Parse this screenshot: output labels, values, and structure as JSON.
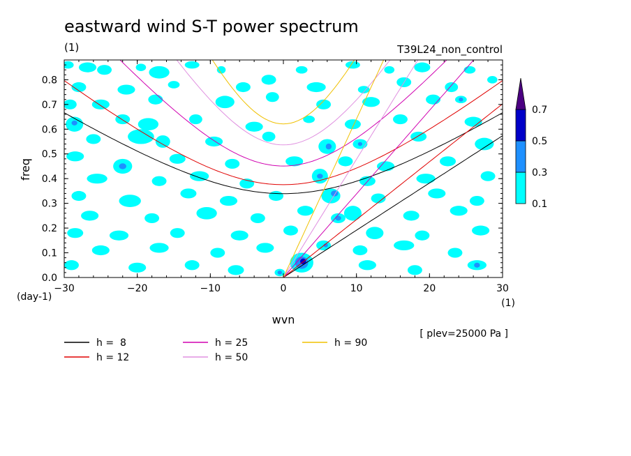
{
  "title": "eastward wind S-T power spectrum",
  "unit_top_left": "(1)",
  "experiment": "T39L24_non_control",
  "plev_note": "[ plev=25000 Pa ]",
  "chart_data": {
    "type": "contour",
    "title": "eastward wind S-T power spectrum",
    "xlabel": "wvn",
    "xunit": "(1)",
    "ylabel": "freq",
    "yunit": "(day-1)",
    "xlim": [
      -30,
      30
    ],
    "ylim": [
      0,
      0.88
    ],
    "xticks": [
      "-30",
      "-20",
      "-10",
      "0",
      "10",
      "20",
      "30"
    ],
    "yticks": [
      "0.0",
      "0.1",
      "0.2",
      "0.3",
      "0.4",
      "0.5",
      "0.6",
      "0.7",
      "0.8"
    ],
    "colorbar": {
      "levels": [
        "0.1",
        "0.3",
        "0.5",
        "0.7"
      ],
      "colors": [
        "#00ffff",
        "#1e90ff",
        "#0000c8",
        "#4b0082"
      ]
    },
    "dispersion_curves": [
      {
        "label": "h =  8",
        "h": 8,
        "color": "#000000"
      },
      {
        "label": "h = 12",
        "h": 12,
        "color": "#e00000"
      },
      {
        "label": "h = 25",
        "h": 25,
        "color": "#d000b0"
      },
      {
        "label": "h = 50",
        "h": 50,
        "color": "#e090e0"
      },
      {
        "label": "h = 90",
        "h": 90,
        "color": "#f0c000"
      }
    ],
    "patches": [
      {
        "x": -29.5,
        "y": 0.86,
        "rx": 0.8,
        "ry": 0.015,
        "level": 1
      },
      {
        "x": -26.8,
        "y": 0.85,
        "rx": 1.2,
        "ry": 0.02,
        "level": 1
      },
      {
        "x": -24.5,
        "y": 0.84,
        "rx": 1.0,
        "ry": 0.02,
        "level": 1
      },
      {
        "x": -19.5,
        "y": 0.85,
        "rx": 0.7,
        "ry": 0.015,
        "level": 1
      },
      {
        "x": -17.0,
        "y": 0.83,
        "rx": 1.4,
        "ry": 0.025,
        "level": 1
      },
      {
        "x": -12.5,
        "y": 0.86,
        "rx": 1.0,
        "ry": 0.015,
        "level": 1
      },
      {
        "x": -8.5,
        "y": 0.84,
        "rx": 0.6,
        "ry": 0.015,
        "level": 1
      },
      {
        "x": -2.0,
        "y": 0.8,
        "rx": 1.0,
        "ry": 0.02,
        "level": 1
      },
      {
        "x": 2.5,
        "y": 0.84,
        "rx": 0.8,
        "ry": 0.015,
        "level": 1
      },
      {
        "x": 9.5,
        "y": 0.86,
        "rx": 1.0,
        "ry": 0.015,
        "level": 1
      },
      {
        "x": 14.5,
        "y": 0.84,
        "rx": 0.7,
        "ry": 0.015,
        "level": 1
      },
      {
        "x": 19.0,
        "y": 0.85,
        "rx": 1.1,
        "ry": 0.02,
        "level": 1
      },
      {
        "x": 25.5,
        "y": 0.84,
        "rx": 0.8,
        "ry": 0.015,
        "level": 1
      },
      {
        "x": 28.6,
        "y": 0.8,
        "rx": 0.7,
        "ry": 0.015,
        "level": 1
      },
      {
        "x": -28.0,
        "y": 0.77,
        "rx": 1.0,
        "ry": 0.02,
        "level": 1
      },
      {
        "x": -21.5,
        "y": 0.76,
        "rx": 1.2,
        "ry": 0.02,
        "level": 1
      },
      {
        "x": -15.0,
        "y": 0.78,
        "rx": 0.8,
        "ry": 0.015,
        "level": 1
      },
      {
        "x": -5.5,
        "y": 0.77,
        "rx": 1.0,
        "ry": 0.02,
        "level": 1
      },
      {
        "x": 4.5,
        "y": 0.77,
        "rx": 1.3,
        "ry": 0.02,
        "level": 1
      },
      {
        "x": 11.0,
        "y": 0.76,
        "rx": 0.8,
        "ry": 0.015,
        "level": 1
      },
      {
        "x": 16.5,
        "y": 0.79,
        "rx": 1.0,
        "ry": 0.02,
        "level": 1
      },
      {
        "x": 23.0,
        "y": 0.77,
        "rx": 0.9,
        "ry": 0.02,
        "level": 1
      },
      {
        "x": -29.2,
        "y": 0.7,
        "rx": 0.9,
        "ry": 0.02,
        "level": 1
      },
      {
        "x": -25.0,
        "y": 0.7,
        "rx": 1.2,
        "ry": 0.02,
        "level": 1
      },
      {
        "x": -17.5,
        "y": 0.72,
        "rx": 1.0,
        "ry": 0.02,
        "level": 1
      },
      {
        "x": -8.0,
        "y": 0.71,
        "rx": 1.3,
        "ry": 0.025,
        "level": 1
      },
      {
        "x": -1.5,
        "y": 0.73,
        "rx": 0.9,
        "ry": 0.02,
        "level": 1
      },
      {
        "x": 5.5,
        "y": 0.7,
        "rx": 1.0,
        "ry": 0.02,
        "level": 1
      },
      {
        "x": 12.0,
        "y": 0.71,
        "rx": 1.2,
        "ry": 0.02,
        "level": 1
      },
      {
        "x": 20.5,
        "y": 0.72,
        "rx": 1.0,
        "ry": 0.02,
        "level": 1
      },
      {
        "x": 24.3,
        "y": 0.72,
        "rx": 0.8,
        "ry": 0.015,
        "level": 1
      },
      {
        "x": 24.3,
        "y": 0.72,
        "rx": 0.3,
        "ry": 0.008,
        "level": 2
      },
      {
        "x": -28.6,
        "y": 0.62,
        "rx": 1.2,
        "ry": 0.03,
        "level": 1
      },
      {
        "x": -28.6,
        "y": 0.625,
        "rx": 0.4,
        "ry": 0.01,
        "level": 2
      },
      {
        "x": -22.0,
        "y": 0.64,
        "rx": 1.0,
        "ry": 0.02,
        "level": 1
      },
      {
        "x": -18.5,
        "y": 0.62,
        "rx": 1.4,
        "ry": 0.025,
        "level": 1
      },
      {
        "x": -12.0,
        "y": 0.64,
        "rx": 0.9,
        "ry": 0.02,
        "level": 1
      },
      {
        "x": -4.0,
        "y": 0.61,
        "rx": 1.2,
        "ry": 0.02,
        "level": 1
      },
      {
        "x": 3.5,
        "y": 0.64,
        "rx": 0.8,
        "ry": 0.015,
        "level": 1
      },
      {
        "x": 9.5,
        "y": 0.62,
        "rx": 1.1,
        "ry": 0.02,
        "level": 1
      },
      {
        "x": 16.0,
        "y": 0.64,
        "rx": 1.0,
        "ry": 0.02,
        "level": 1
      },
      {
        "x": 26.0,
        "y": 0.63,
        "rx": 1.2,
        "ry": 0.02,
        "level": 1
      },
      {
        "x": -26.0,
        "y": 0.56,
        "rx": 1.0,
        "ry": 0.02,
        "level": 1
      },
      {
        "x": -19.5,
        "y": 0.57,
        "rx": 1.8,
        "ry": 0.03,
        "level": 1
      },
      {
        "x": -16.5,
        "y": 0.55,
        "rx": 1.0,
        "ry": 0.025,
        "level": 1
      },
      {
        "x": -9.5,
        "y": 0.55,
        "rx": 1.2,
        "ry": 0.02,
        "level": 1
      },
      {
        "x": -2.0,
        "y": 0.57,
        "rx": 0.9,
        "ry": 0.02,
        "level": 1
      },
      {
        "x": 6.0,
        "y": 0.53,
        "rx": 1.2,
        "ry": 0.03,
        "level": 1
      },
      {
        "x": 6.2,
        "y": 0.53,
        "rx": 0.4,
        "ry": 0.012,
        "level": 2
      },
      {
        "x": 10.5,
        "y": 0.54,
        "rx": 1.0,
        "ry": 0.02,
        "level": 1
      },
      {
        "x": 10.5,
        "y": 0.54,
        "rx": 0.3,
        "ry": 0.008,
        "level": 2
      },
      {
        "x": 18.5,
        "y": 0.57,
        "rx": 1.1,
        "ry": 0.02,
        "level": 1
      },
      {
        "x": 27.5,
        "y": 0.54,
        "rx": 1.3,
        "ry": 0.025,
        "level": 1
      },
      {
        "x": -28.5,
        "y": 0.49,
        "rx": 1.2,
        "ry": 0.02,
        "level": 1
      },
      {
        "x": -22.0,
        "y": 0.45,
        "rx": 1.3,
        "ry": 0.03,
        "level": 1
      },
      {
        "x": -22.0,
        "y": 0.45,
        "rx": 0.5,
        "ry": 0.012,
        "level": 2
      },
      {
        "x": -14.5,
        "y": 0.48,
        "rx": 1.1,
        "ry": 0.02,
        "level": 1
      },
      {
        "x": -7.0,
        "y": 0.46,
        "rx": 1.0,
        "ry": 0.02,
        "level": 1
      },
      {
        "x": 1.5,
        "y": 0.47,
        "rx": 1.2,
        "ry": 0.02,
        "level": 1
      },
      {
        "x": 8.5,
        "y": 0.47,
        "rx": 1.0,
        "ry": 0.02,
        "level": 1
      },
      {
        "x": 14.0,
        "y": 0.45,
        "rx": 1.2,
        "ry": 0.02,
        "level": 1
      },
      {
        "x": 22.5,
        "y": 0.47,
        "rx": 1.1,
        "ry": 0.02,
        "level": 1
      },
      {
        "x": -25.5,
        "y": 0.4,
        "rx": 1.4,
        "ry": 0.02,
        "level": 1
      },
      {
        "x": -17.0,
        "y": 0.39,
        "rx": 1.0,
        "ry": 0.02,
        "level": 1
      },
      {
        "x": -11.5,
        "y": 0.41,
        "rx": 1.3,
        "ry": 0.02,
        "level": 1
      },
      {
        "x": -5.0,
        "y": 0.38,
        "rx": 1.0,
        "ry": 0.02,
        "level": 1
      },
      {
        "x": 5.0,
        "y": 0.41,
        "rx": 1.1,
        "ry": 0.03,
        "level": 1
      },
      {
        "x": 5.0,
        "y": 0.41,
        "rx": 0.4,
        "ry": 0.01,
        "level": 2
      },
      {
        "x": 11.5,
        "y": 0.39,
        "rx": 1.1,
        "ry": 0.02,
        "level": 1
      },
      {
        "x": 19.5,
        "y": 0.4,
        "rx": 1.3,
        "ry": 0.02,
        "level": 1
      },
      {
        "x": 28.0,
        "y": 0.41,
        "rx": 1.0,
        "ry": 0.02,
        "level": 1
      },
      {
        "x": -28.0,
        "y": 0.33,
        "rx": 1.0,
        "ry": 0.02,
        "level": 1
      },
      {
        "x": -21.0,
        "y": 0.31,
        "rx": 1.5,
        "ry": 0.025,
        "level": 1
      },
      {
        "x": -13.0,
        "y": 0.34,
        "rx": 1.1,
        "ry": 0.02,
        "level": 1
      },
      {
        "x": -7.5,
        "y": 0.31,
        "rx": 1.2,
        "ry": 0.02,
        "level": 1
      },
      {
        "x": -1.0,
        "y": 0.33,
        "rx": 1.0,
        "ry": 0.02,
        "level": 1
      },
      {
        "x": 6.5,
        "y": 0.33,
        "rx": 1.3,
        "ry": 0.03,
        "level": 1
      },
      {
        "x": 7.0,
        "y": 0.34,
        "rx": 0.5,
        "ry": 0.012,
        "level": 2
      },
      {
        "x": 13.0,
        "y": 0.32,
        "rx": 1.0,
        "ry": 0.02,
        "level": 1
      },
      {
        "x": 21.0,
        "y": 0.34,
        "rx": 1.2,
        "ry": 0.02,
        "level": 1
      },
      {
        "x": 26.5,
        "y": 0.31,
        "rx": 1.0,
        "ry": 0.02,
        "level": 1
      },
      {
        "x": -26.5,
        "y": 0.25,
        "rx": 1.2,
        "ry": 0.02,
        "level": 1
      },
      {
        "x": -18.0,
        "y": 0.24,
        "rx": 1.0,
        "ry": 0.02,
        "level": 1
      },
      {
        "x": -10.5,
        "y": 0.26,
        "rx": 1.4,
        "ry": 0.025,
        "level": 1
      },
      {
        "x": -3.5,
        "y": 0.24,
        "rx": 1.0,
        "ry": 0.02,
        "level": 1
      },
      {
        "x": 3.0,
        "y": 0.27,
        "rx": 1.1,
        "ry": 0.02,
        "level": 1
      },
      {
        "x": 9.5,
        "y": 0.26,
        "rx": 1.2,
        "ry": 0.03,
        "level": 1
      },
      {
        "x": 7.5,
        "y": 0.24,
        "rx": 1.0,
        "ry": 0.02,
        "level": 1
      },
      {
        "x": 7.5,
        "y": 0.24,
        "rx": 0.4,
        "ry": 0.01,
        "level": 2
      },
      {
        "x": 17.5,
        "y": 0.25,
        "rx": 1.1,
        "ry": 0.02,
        "level": 1
      },
      {
        "x": 24.0,
        "y": 0.27,
        "rx": 1.2,
        "ry": 0.02,
        "level": 1
      },
      {
        "x": -28.5,
        "y": 0.18,
        "rx": 1.1,
        "ry": 0.02,
        "level": 1
      },
      {
        "x": -22.5,
        "y": 0.17,
        "rx": 1.3,
        "ry": 0.02,
        "level": 1
      },
      {
        "x": -14.5,
        "y": 0.18,
        "rx": 1.0,
        "ry": 0.02,
        "level": 1
      },
      {
        "x": -6.0,
        "y": 0.17,
        "rx": 1.2,
        "ry": 0.02,
        "level": 1
      },
      {
        "x": 1.0,
        "y": 0.19,
        "rx": 1.0,
        "ry": 0.02,
        "level": 1
      },
      {
        "x": 12.5,
        "y": 0.18,
        "rx": 1.2,
        "ry": 0.025,
        "level": 1
      },
      {
        "x": 19.0,
        "y": 0.17,
        "rx": 1.0,
        "ry": 0.02,
        "level": 1
      },
      {
        "x": 27.0,
        "y": 0.19,
        "rx": 1.2,
        "ry": 0.02,
        "level": 1
      },
      {
        "x": -25.0,
        "y": 0.11,
        "rx": 1.2,
        "ry": 0.02,
        "level": 1
      },
      {
        "x": -17.0,
        "y": 0.12,
        "rx": 1.3,
        "ry": 0.02,
        "level": 1
      },
      {
        "x": -9.0,
        "y": 0.1,
        "rx": 1.0,
        "ry": 0.02,
        "level": 1
      },
      {
        "x": -2.5,
        "y": 0.12,
        "rx": 1.2,
        "ry": 0.02,
        "level": 1
      },
      {
        "x": 5.5,
        "y": 0.13,
        "rx": 1.0,
        "ry": 0.02,
        "level": 1
      },
      {
        "x": 5.8,
        "y": 0.13,
        "rx": 0.3,
        "ry": 0.008,
        "level": 2
      },
      {
        "x": 10.5,
        "y": 0.11,
        "rx": 1.0,
        "ry": 0.02,
        "level": 1
      },
      {
        "x": 16.5,
        "y": 0.13,
        "rx": 1.4,
        "ry": 0.02,
        "level": 1
      },
      {
        "x": 23.5,
        "y": 0.1,
        "rx": 1.0,
        "ry": 0.02,
        "level": 1
      },
      {
        "x": -29.0,
        "y": 0.05,
        "rx": 1.0,
        "ry": 0.02,
        "level": 1
      },
      {
        "x": -20.0,
        "y": 0.04,
        "rx": 1.2,
        "ry": 0.02,
        "level": 1
      },
      {
        "x": -12.5,
        "y": 0.05,
        "rx": 1.0,
        "ry": 0.02,
        "level": 1
      },
      {
        "x": -6.5,
        "y": 0.03,
        "rx": 1.1,
        "ry": 0.02,
        "level": 1
      },
      {
        "x": 2.5,
        "y": 0.06,
        "rx": 1.6,
        "ry": 0.04,
        "level": 1
      },
      {
        "x": 2.5,
        "y": 0.06,
        "rx": 0.9,
        "ry": 0.025,
        "level": 2
      },
      {
        "x": 2.7,
        "y": 0.065,
        "rx": 0.4,
        "ry": 0.012,
        "level": 3
      },
      {
        "x": -0.5,
        "y": 0.02,
        "rx": 0.7,
        "ry": 0.015,
        "level": 1
      },
      {
        "x": -0.5,
        "y": 0.02,
        "rx": 0.3,
        "ry": 0.008,
        "level": 2
      },
      {
        "x": 11.5,
        "y": 0.05,
        "rx": 1.2,
        "ry": 0.02,
        "level": 1
      },
      {
        "x": 18.0,
        "y": 0.03,
        "rx": 1.0,
        "ry": 0.02,
        "level": 1
      },
      {
        "x": 26.5,
        "y": 0.05,
        "rx": 1.3,
        "ry": 0.02,
        "level": 1
      },
      {
        "x": 26.5,
        "y": 0.05,
        "rx": 0.4,
        "ry": 0.01,
        "level": 2
      }
    ]
  }
}
